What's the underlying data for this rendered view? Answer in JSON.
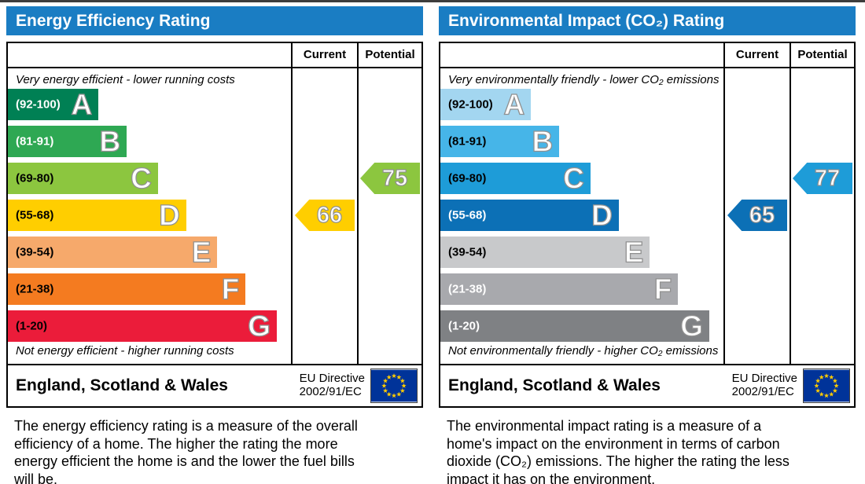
{
  "eu_flag": {
    "field": "#003399",
    "stars": "#ffcc00"
  },
  "panels": [
    {
      "title": "Energy Efficiency Rating",
      "header_color": "#1a7dc3",
      "columns": {
        "current": "Current",
        "potential": "Potential"
      },
      "top_caption": "Very energy efficient - lower running costs",
      "bottom_caption": "Not energy efficient - higher running costs",
      "bands": [
        {
          "grade": "A",
          "range": "(92-100)",
          "color": "#008054",
          "width": "32%",
          "label_color": "#ffffff"
        },
        {
          "grade": "B",
          "range": "(81-91)",
          "color": "#2ea853",
          "width": "42%",
          "label_color": "#ffffff"
        },
        {
          "grade": "C",
          "range": "(69-80)",
          "color": "#8cc63f",
          "width": "53%",
          "label_color": "#000000"
        },
        {
          "grade": "D",
          "range": "(55-68)",
          "color": "#ffce00",
          "width": "63%",
          "label_color": "#000000"
        },
        {
          "grade": "E",
          "range": "(39-54)",
          "color": "#f6a96b",
          "width": "74%",
          "label_color": "#000000"
        },
        {
          "grade": "F",
          "range": "(21-38)",
          "color": "#f47b20",
          "width": "84%",
          "label_color": "#000000"
        },
        {
          "grade": "G",
          "range": "(1-20)",
          "color": "#eb1c3a",
          "width": "95%",
          "label_color": "#000000"
        }
      ],
      "current": {
        "value": "66",
        "color": "#ffce00",
        "band": "D"
      },
      "potential": {
        "value": "75",
        "color": "#8cc63f",
        "band": "C"
      },
      "footer": {
        "region": "England, Scotland & Wales",
        "directive_line1": "EU Directive",
        "directive_line2": "2002/91/EC"
      },
      "description": "The energy efficiency rating is a measure of the overall efficiency of a home. The higher the rating the more energy efficient the home is and the lower the fuel bills will be."
    },
    {
      "title": "Environmental Impact (CO₂) Rating",
      "header_color": "#1a7dc3",
      "columns": {
        "current": "Current",
        "potential": "Potential"
      },
      "top_caption": "Very environmentally friendly - lower CO₂ emissions",
      "bottom_caption": "Not environmentally friendly - higher CO₂ emissions",
      "bands": [
        {
          "grade": "A",
          "range": "(92-100)",
          "color": "#a3d6f0",
          "width": "32%",
          "label_color": "#000000"
        },
        {
          "grade": "B",
          "range": "(81-91)",
          "color": "#46b5e8",
          "width": "42%",
          "label_color": "#000000"
        },
        {
          "grade": "C",
          "range": "(69-80)",
          "color": "#1e9cd8",
          "width": "53%",
          "label_color": "#000000"
        },
        {
          "grade": "D",
          "range": "(55-68)",
          "color": "#0c70b6",
          "width": "63%",
          "label_color": "#ffffff"
        },
        {
          "grade": "E",
          "range": "(39-54)",
          "color": "#c8c9cb",
          "width": "74%",
          "label_color": "#000000"
        },
        {
          "grade": "F",
          "range": "(21-38)",
          "color": "#a8a9ad",
          "width": "84%",
          "label_color": "#ffffff"
        },
        {
          "grade": "G",
          "range": "(1-20)",
          "color": "#7f8184",
          "width": "95%",
          "label_color": "#ffffff"
        }
      ],
      "current": {
        "value": "65",
        "color": "#0c70b6",
        "band": "D"
      },
      "potential": {
        "value": "77",
        "color": "#1e9cd8",
        "band": "C"
      },
      "footer": {
        "region": "England, Scotland & Wales",
        "directive_line1": "EU Directive",
        "directive_line2": "2002/91/EC"
      },
      "description": "The environmental impact rating is a measure of a home's impact on the environment in terms of carbon dioxide (CO₂) emissions. The higher the rating the less impact it has on the environment."
    }
  ],
  "chart_data": [
    {
      "type": "bar",
      "orientation": "horizontal",
      "title": "Energy Efficiency Rating",
      "categories": [
        "A",
        "B",
        "C",
        "D",
        "E",
        "F",
        "G"
      ],
      "category_ranges": [
        "92-100",
        "81-91",
        "69-80",
        "55-68",
        "39-54",
        "21-38",
        "1-20"
      ],
      "bar_lengths_pct": [
        32,
        42,
        53,
        63,
        74,
        84,
        95
      ],
      "colors": [
        "#008054",
        "#2ea853",
        "#8cc63f",
        "#ffce00",
        "#f6a96b",
        "#f47b20",
        "#eb1c3a"
      ],
      "current": 66,
      "current_band": "D",
      "potential": 75,
      "potential_band": "C",
      "xlim": [
        1,
        100
      ],
      "legend_position": "columns right: Current, Potential",
      "annotations": [
        "Very energy efficient - lower running costs",
        "Not energy efficient - higher running costs",
        "England, Scotland & Wales",
        "EU Directive 2002/91/EC"
      ]
    },
    {
      "type": "bar",
      "orientation": "horizontal",
      "title": "Environmental Impact (CO₂) Rating",
      "categories": [
        "A",
        "B",
        "C",
        "D",
        "E",
        "F",
        "G"
      ],
      "category_ranges": [
        "92-100",
        "81-91",
        "69-80",
        "55-68",
        "39-54",
        "21-38",
        "1-20"
      ],
      "bar_lengths_pct": [
        32,
        42,
        53,
        63,
        74,
        84,
        95
      ],
      "colors": [
        "#a3d6f0",
        "#46b5e8",
        "#1e9cd8",
        "#0c70b6",
        "#c8c9cb",
        "#a8a9ad",
        "#7f8184"
      ],
      "current": 65,
      "current_band": "D",
      "potential": 77,
      "potential_band": "C",
      "xlim": [
        1,
        100
      ],
      "legend_position": "columns right: Current, Potential",
      "annotations": [
        "Very environmentally friendly - lower CO₂ emissions",
        "Not environmentally friendly - higher CO₂ emissions",
        "England, Scotland & Wales",
        "EU Directive 2002/91/EC"
      ]
    }
  ]
}
